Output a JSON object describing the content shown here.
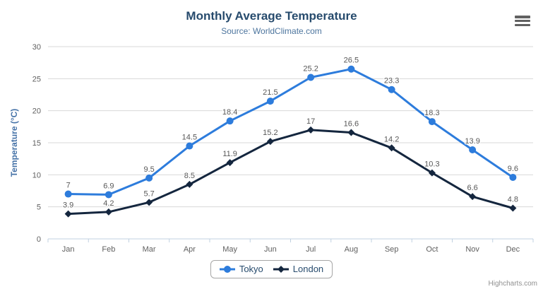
{
  "title": "Monthly Average Temperature",
  "subtitle": "Source: WorldClimate.com",
  "credits": "Highcharts.com",
  "export_menu": "hamburger-menu",
  "colors": {
    "title": "#274b6d",
    "subtitle": "#4d759e",
    "yaxis_title": "#4572a7",
    "axis_labels": "#606060",
    "grid_line": "#d8d8d8",
    "axis_line": "#c0d0e0",
    "tokyo": "#2d7cdc",
    "london": "#14263e"
  },
  "chart_data": {
    "type": "line",
    "title": "Monthly Average Temperature",
    "subtitle": "Source: WorldClimate.com",
    "categories": [
      "Jan",
      "Feb",
      "Mar",
      "Apr",
      "May",
      "Jun",
      "Jul",
      "Aug",
      "Sep",
      "Oct",
      "Nov",
      "Dec"
    ],
    "series": [
      {
        "name": "Tokyo",
        "color": "#2d7cdc",
        "marker": "circle",
        "values": [
          7,
          6.9,
          9.5,
          14.5,
          18.4,
          21.5,
          25.2,
          26.5,
          23.3,
          18.3,
          13.9,
          9.6
        ]
      },
      {
        "name": "London",
        "color": "#14263e",
        "marker": "diamond",
        "values": [
          3.9,
          4.2,
          5.7,
          8.5,
          11.9,
          15.2,
          17,
          16.6,
          14.2,
          10.3,
          6.6,
          4.8
        ]
      }
    ],
    "xlabel": "",
    "ylabel": "Temperature (°C)",
    "ylim": [
      0,
      30
    ],
    "yticks": [
      0,
      5,
      10,
      15,
      20,
      25,
      30
    ],
    "grid": true,
    "data_labels": true,
    "legend_position": "bottom-center"
  }
}
